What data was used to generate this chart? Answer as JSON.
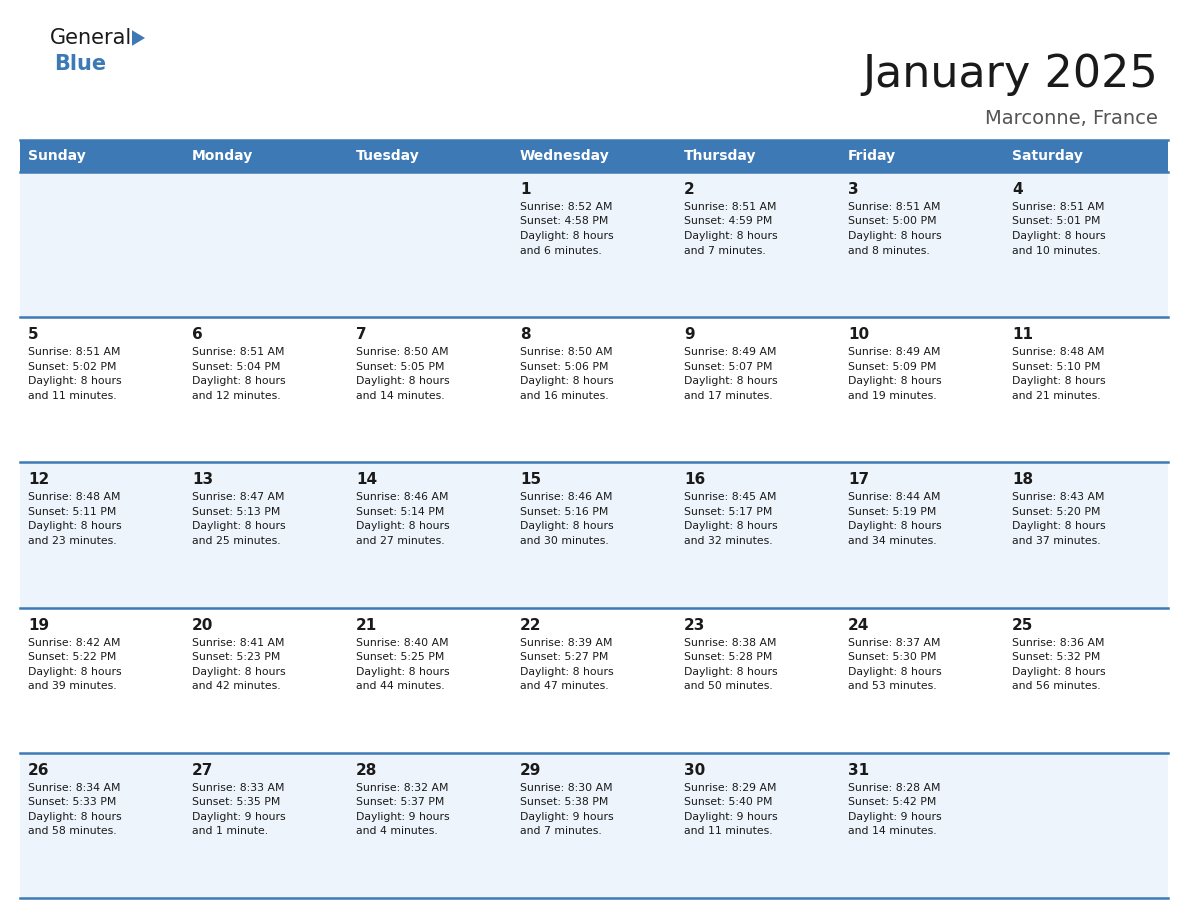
{
  "title": "January 2025",
  "subtitle": "Marconne, France",
  "header_bg": "#3d7ab5",
  "header_text": "#ffffff",
  "row_bg_odd": "#eef4fb",
  "row_bg_even": "#ffffff",
  "grid_line_color": "#3d7ab5",
  "day_names": [
    "Sunday",
    "Monday",
    "Tuesday",
    "Wednesday",
    "Thursday",
    "Friday",
    "Saturday"
  ],
  "days": [
    {
      "day": 1,
      "col": 3,
      "row": 0,
      "sunrise": "8:52 AM",
      "sunset": "4:58 PM",
      "daylight": "8 hours\nand 6 minutes."
    },
    {
      "day": 2,
      "col": 4,
      "row": 0,
      "sunrise": "8:51 AM",
      "sunset": "4:59 PM",
      "daylight": "8 hours\nand 7 minutes."
    },
    {
      "day": 3,
      "col": 5,
      "row": 0,
      "sunrise": "8:51 AM",
      "sunset": "5:00 PM",
      "daylight": "8 hours\nand 8 minutes."
    },
    {
      "day": 4,
      "col": 6,
      "row": 0,
      "sunrise": "8:51 AM",
      "sunset": "5:01 PM",
      "daylight": "8 hours\nand 10 minutes."
    },
    {
      "day": 5,
      "col": 0,
      "row": 1,
      "sunrise": "8:51 AM",
      "sunset": "5:02 PM",
      "daylight": "8 hours\nand 11 minutes."
    },
    {
      "day": 6,
      "col": 1,
      "row": 1,
      "sunrise": "8:51 AM",
      "sunset": "5:04 PM",
      "daylight": "8 hours\nand 12 minutes."
    },
    {
      "day": 7,
      "col": 2,
      "row": 1,
      "sunrise": "8:50 AM",
      "sunset": "5:05 PM",
      "daylight": "8 hours\nand 14 minutes."
    },
    {
      "day": 8,
      "col": 3,
      "row": 1,
      "sunrise": "8:50 AM",
      "sunset": "5:06 PM",
      "daylight": "8 hours\nand 16 minutes."
    },
    {
      "day": 9,
      "col": 4,
      "row": 1,
      "sunrise": "8:49 AM",
      "sunset": "5:07 PM",
      "daylight": "8 hours\nand 17 minutes."
    },
    {
      "day": 10,
      "col": 5,
      "row": 1,
      "sunrise": "8:49 AM",
      "sunset": "5:09 PM",
      "daylight": "8 hours\nand 19 minutes."
    },
    {
      "day": 11,
      "col": 6,
      "row": 1,
      "sunrise": "8:48 AM",
      "sunset": "5:10 PM",
      "daylight": "8 hours\nand 21 minutes."
    },
    {
      "day": 12,
      "col": 0,
      "row": 2,
      "sunrise": "8:48 AM",
      "sunset": "5:11 PM",
      "daylight": "8 hours\nand 23 minutes."
    },
    {
      "day": 13,
      "col": 1,
      "row": 2,
      "sunrise": "8:47 AM",
      "sunset": "5:13 PM",
      "daylight": "8 hours\nand 25 minutes."
    },
    {
      "day": 14,
      "col": 2,
      "row": 2,
      "sunrise": "8:46 AM",
      "sunset": "5:14 PM",
      "daylight": "8 hours\nand 27 minutes."
    },
    {
      "day": 15,
      "col": 3,
      "row": 2,
      "sunrise": "8:46 AM",
      "sunset": "5:16 PM",
      "daylight": "8 hours\nand 30 minutes."
    },
    {
      "day": 16,
      "col": 4,
      "row": 2,
      "sunrise": "8:45 AM",
      "sunset": "5:17 PM",
      "daylight": "8 hours\nand 32 minutes."
    },
    {
      "day": 17,
      "col": 5,
      "row": 2,
      "sunrise": "8:44 AM",
      "sunset": "5:19 PM",
      "daylight": "8 hours\nand 34 minutes."
    },
    {
      "day": 18,
      "col": 6,
      "row": 2,
      "sunrise": "8:43 AM",
      "sunset": "5:20 PM",
      "daylight": "8 hours\nand 37 minutes."
    },
    {
      "day": 19,
      "col": 0,
      "row": 3,
      "sunrise": "8:42 AM",
      "sunset": "5:22 PM",
      "daylight": "8 hours\nand 39 minutes."
    },
    {
      "day": 20,
      "col": 1,
      "row": 3,
      "sunrise": "8:41 AM",
      "sunset": "5:23 PM",
      "daylight": "8 hours\nand 42 minutes."
    },
    {
      "day": 21,
      "col": 2,
      "row": 3,
      "sunrise": "8:40 AM",
      "sunset": "5:25 PM",
      "daylight": "8 hours\nand 44 minutes."
    },
    {
      "day": 22,
      "col": 3,
      "row": 3,
      "sunrise": "8:39 AM",
      "sunset": "5:27 PM",
      "daylight": "8 hours\nand 47 minutes."
    },
    {
      "day": 23,
      "col": 4,
      "row": 3,
      "sunrise": "8:38 AM",
      "sunset": "5:28 PM",
      "daylight": "8 hours\nand 50 minutes."
    },
    {
      "day": 24,
      "col": 5,
      "row": 3,
      "sunrise": "8:37 AM",
      "sunset": "5:30 PM",
      "daylight": "8 hours\nand 53 minutes."
    },
    {
      "day": 25,
      "col": 6,
      "row": 3,
      "sunrise": "8:36 AM",
      "sunset": "5:32 PM",
      "daylight": "8 hours\nand 56 minutes."
    },
    {
      "day": 26,
      "col": 0,
      "row": 4,
      "sunrise": "8:34 AM",
      "sunset": "5:33 PM",
      "daylight": "8 hours\nand 58 minutes."
    },
    {
      "day": 27,
      "col": 1,
      "row": 4,
      "sunrise": "8:33 AM",
      "sunset": "5:35 PM",
      "daylight": "9 hours\nand 1 minute."
    },
    {
      "day": 28,
      "col": 2,
      "row": 4,
      "sunrise": "8:32 AM",
      "sunset": "5:37 PM",
      "daylight": "9 hours\nand 4 minutes."
    },
    {
      "day": 29,
      "col": 3,
      "row": 4,
      "sunrise": "8:30 AM",
      "sunset": "5:38 PM",
      "daylight": "9 hours\nand 7 minutes."
    },
    {
      "day": 30,
      "col": 4,
      "row": 4,
      "sunrise": "8:29 AM",
      "sunset": "5:40 PM",
      "daylight": "9 hours\nand 11 minutes."
    },
    {
      "day": 31,
      "col": 5,
      "row": 4,
      "sunrise": "8:28 AM",
      "sunset": "5:42 PM",
      "daylight": "9 hours\nand 14 minutes."
    }
  ]
}
